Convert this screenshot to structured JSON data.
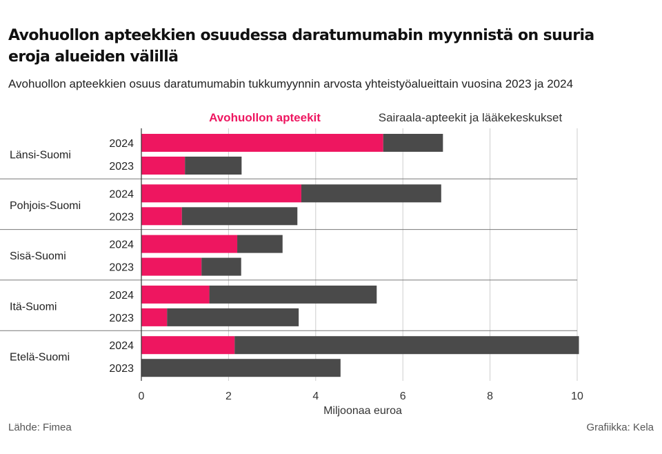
{
  "title": "Avohuollon apteekkien osuudessa daratumumabin myynnistä on suuria eroja alueiden välillä",
  "subtitle": "Avohuollon apteekkien osuus daratumumabin tukkumyynnin arvosta yhteistyöalueittain vuosina 2023 ja 2024",
  "source": "Lähde: Fimea",
  "credit": "Grafiikka: Kela",
  "colors": {
    "avohuolto": "#ee1660",
    "sairaala": "#4a4a4a",
    "grid": "#cccccc",
    "axis": "#333333"
  },
  "chart_data": {
    "type": "bar",
    "orientation": "horizontal",
    "stacked": true,
    "xlabel": "Miljoonaa euroa",
    "xlim": [
      0,
      10
    ],
    "xticks": [
      0,
      2,
      4,
      6,
      8,
      10
    ],
    "grid": true,
    "legend": "top",
    "series": [
      {
        "name": "Avohuollon apteekit",
        "color": "#ee1660"
      },
      {
        "name": "Sairaala-apteekit ja lääkekeskukset",
        "color": "#4a4a4a"
      }
    ],
    "groups": [
      {
        "region": "Länsi-Suomi",
        "rows": [
          {
            "year": "2024",
            "values": [
              5.55,
              1.37
            ]
          },
          {
            "year": "2023",
            "values": [
              1.0,
              1.3
            ]
          }
        ]
      },
      {
        "region": "Pohjois-Suomi",
        "rows": [
          {
            "year": "2024",
            "values": [
              3.67,
              3.21
            ]
          },
          {
            "year": "2023",
            "values": [
              0.93,
              2.65
            ]
          }
        ]
      },
      {
        "region": "Sisä-Suomi",
        "rows": [
          {
            "year": "2024",
            "values": [
              2.2,
              1.04
            ]
          },
          {
            "year": "2023",
            "values": [
              1.38,
              0.91
            ]
          }
        ]
      },
      {
        "region": "Itä-Suomi",
        "rows": [
          {
            "year": "2024",
            "values": [
              1.56,
              3.84
            ]
          },
          {
            "year": "2023",
            "values": [
              0.59,
              3.02
            ]
          }
        ]
      },
      {
        "region": "Etelä-Suomi",
        "rows": [
          {
            "year": "2024",
            "values": [
              2.14,
              7.9
            ]
          },
          {
            "year": "2023",
            "values": [
              0.0,
              4.57
            ]
          }
        ]
      }
    ]
  }
}
